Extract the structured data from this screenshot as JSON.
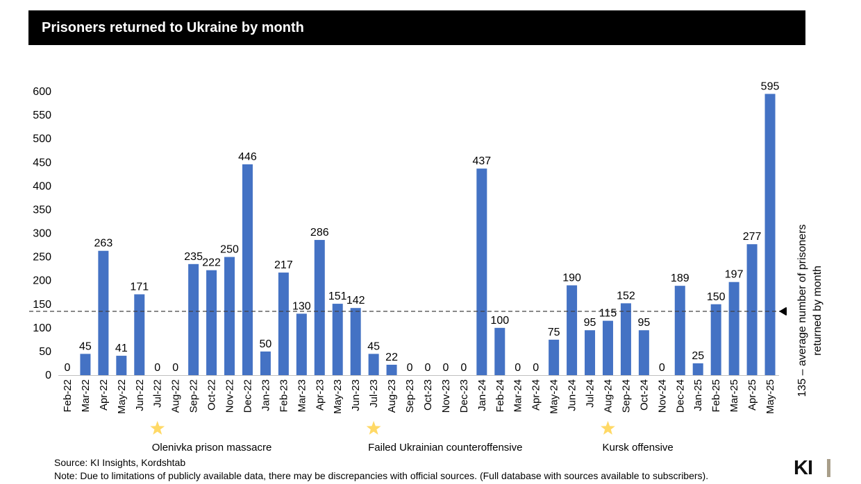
{
  "title": "Prisoners returned to Ukraine by month",
  "chart_data": {
    "type": "bar",
    "categories": [
      "Feb-22",
      "Mar-22",
      "Apr-22",
      "May-22",
      "Jun-22",
      "Jul-22",
      "Aug-22",
      "Sep-22",
      "Oct-22",
      "Nov-22",
      "Dec-22",
      "Jan-23",
      "Feb-23",
      "Mar-23",
      "Apr-23",
      "May-23",
      "Jun-23",
      "Jul-23",
      "Aug-23",
      "Sep-23",
      "Oct-23",
      "Nov-23",
      "Dec-23",
      "Jan-24",
      "Feb-24",
      "Mar-24",
      "Apr-24",
      "May-24",
      "Jun-24",
      "Jul-24",
      "Aug-24",
      "Sep-24",
      "Oct-24",
      "Nov-24",
      "Dec-24",
      "Jan-25",
      "Feb-25",
      "Mar-25",
      "Apr-25",
      "May-25"
    ],
    "values": [
      0,
      45,
      263,
      41,
      171,
      0,
      0,
      235,
      222,
      250,
      446,
      50,
      217,
      130,
      286,
      151,
      142,
      45,
      22,
      0,
      0,
      0,
      0,
      437,
      100,
      0,
      0,
      75,
      190,
      95,
      115,
      152,
      95,
      0,
      189,
      25,
      150,
      197,
      277,
      595
    ],
    "ylim": [
      0,
      600
    ],
    "yticks": [
      0,
      50,
      100,
      150,
      200,
      250,
      300,
      350,
      400,
      450,
      500,
      550,
      600
    ],
    "bar_color": "#4472C4",
    "reference_line": {
      "value": 135,
      "label_line1": "135 – average number of prisoners",
      "label_line2": "returned by month"
    },
    "events": [
      {
        "category": "Jul-22",
        "label": "Olenivka prison massacre"
      },
      {
        "category": "Jul-23",
        "label": "Failed Ukrainian counteroffensive"
      },
      {
        "category": "Aug-24",
        "label": "Kursk offensive"
      }
    ],
    "star_color": "#FFD966"
  },
  "source": "Source: KI Insights, Kordshtab",
  "note": "Note: Due to limitations of publicly available data, there may be discrepancies with official sources. (Full database with sources available to subscribers).",
  "logo": {
    "text": "KI",
    "colors": [
      "#111111",
      "#A89E8A"
    ]
  }
}
